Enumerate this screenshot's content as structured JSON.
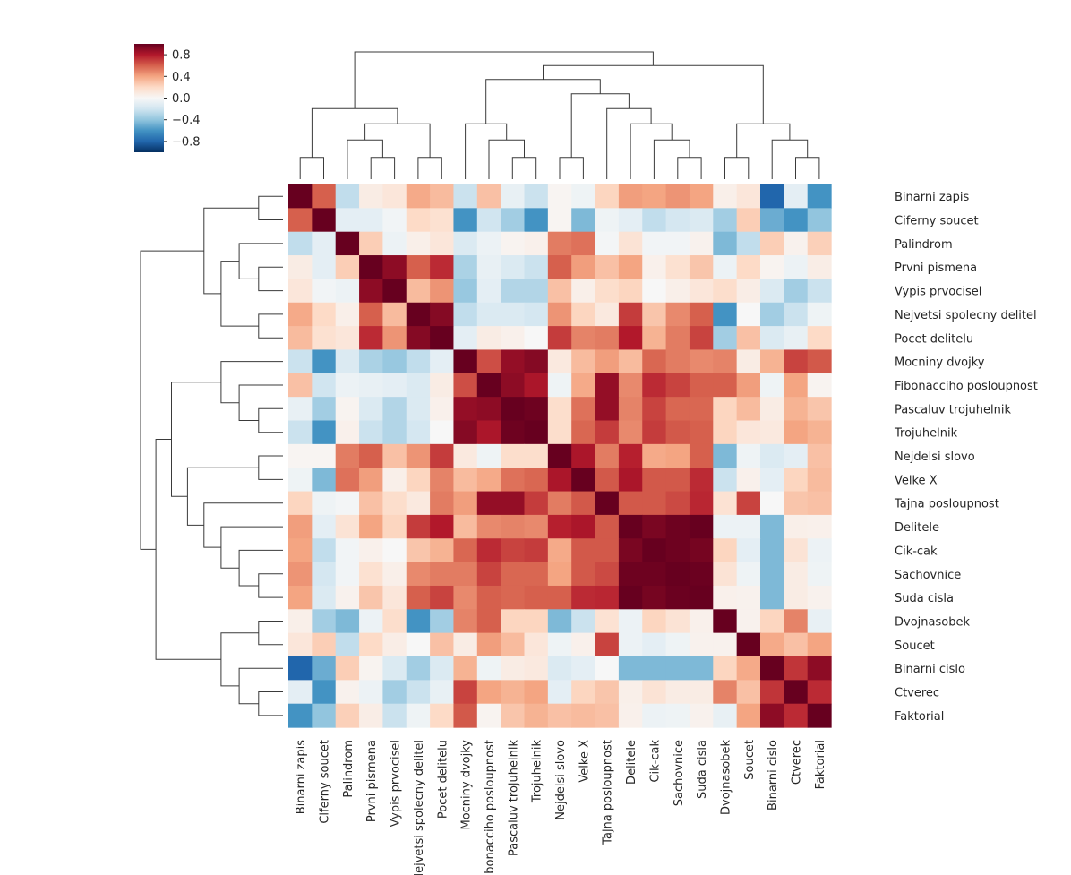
{
  "chart_data": {
    "type": "heatmap",
    "title": "",
    "labels": [
      "Binarni zapis",
      "Ciferny soucet",
      "Palindrom",
      "Prvni pismena",
      "Vypis prvocisel",
      "Nejvetsi spolecny delitel",
      "Pocet delitelu",
      "Mocniny dvojky",
      "Fibonacciho posloupnost",
      "Pascaluv trojuhelnik",
      "Trojuhelnik",
      "Nejdelsi slovo",
      "Velke X",
      "Tajna posloupnost",
      "Delitele",
      "Cik-cak",
      "Sachovnice",
      "Suda cisla",
      "Dvojnasobek",
      "Soucet",
      "Binarni cislo",
      "Ctverec",
      "Faktorial"
    ],
    "values": [
      [
        1.0,
        0.6,
        -0.25,
        0.08,
        0.12,
        0.38,
        0.32,
        -0.22,
        0.3,
        -0.08,
        -0.22,
        0.02,
        -0.05,
        0.22,
        0.42,
        0.4,
        0.45,
        0.4,
        0.06,
        0.12,
        -0.8,
        -0.1,
        -0.6
      ],
      [
        0.6,
        1.0,
        -0.1,
        -0.1,
        -0.03,
        0.2,
        0.16,
        -0.6,
        -0.2,
        -0.35,
        -0.6,
        0.02,
        -0.45,
        -0.05,
        -0.1,
        -0.25,
        -0.18,
        -0.15,
        -0.35,
        0.25,
        -0.5,
        -0.6,
        -0.4
      ],
      [
        -0.25,
        -0.1,
        1.0,
        0.25,
        -0.06,
        0.06,
        0.12,
        -0.15,
        -0.06,
        0.03,
        0.05,
        0.52,
        0.55,
        -0.02,
        0.14,
        -0.03,
        -0.03,
        0.04,
        -0.45,
        -0.25,
        0.25,
        0.04,
        0.24
      ],
      [
        0.08,
        -0.1,
        0.25,
        1.0,
        0.9,
        0.6,
        0.75,
        -0.32,
        -0.08,
        -0.15,
        -0.22,
        0.6,
        0.42,
        0.3,
        0.4,
        0.05,
        0.16,
        0.28,
        -0.06,
        0.2,
        0.03,
        -0.06,
        0.07
      ],
      [
        0.12,
        -0.03,
        -0.06,
        0.9,
        1.0,
        0.32,
        0.45,
        -0.38,
        -0.1,
        -0.3,
        -0.3,
        0.3,
        0.06,
        0.18,
        0.22,
        0.0,
        0.06,
        0.12,
        0.18,
        0.07,
        -0.15,
        -0.35,
        -0.22
      ],
      [
        0.38,
        0.2,
        0.06,
        0.6,
        0.32,
        1.0,
        0.92,
        -0.25,
        -0.15,
        -0.15,
        -0.18,
        0.45,
        0.22,
        0.1,
        0.7,
        0.28,
        0.48,
        0.6,
        -0.6,
        0.0,
        -0.35,
        -0.22,
        -0.05
      ],
      [
        0.32,
        0.16,
        0.12,
        0.75,
        0.45,
        0.92,
        1.0,
        -0.1,
        0.08,
        0.05,
        0.0,
        0.7,
        0.5,
        0.52,
        0.8,
        0.35,
        0.52,
        0.68,
        -0.35,
        0.3,
        -0.15,
        -0.08,
        0.2
      ],
      [
        -0.22,
        -0.6,
        -0.15,
        -0.32,
        -0.38,
        -0.25,
        -0.1,
        1.0,
        0.65,
        0.88,
        0.92,
        0.1,
        0.32,
        0.42,
        0.32,
        0.58,
        0.52,
        0.48,
        0.5,
        0.08,
        0.35,
        0.68,
        0.62
      ],
      [
        0.3,
        -0.2,
        -0.06,
        -0.08,
        -0.1,
        -0.15,
        0.08,
        0.65,
        1.0,
        0.9,
        0.82,
        -0.05,
        0.38,
        0.88,
        0.48,
        0.75,
        0.68,
        0.6,
        0.6,
        0.42,
        -0.05,
        0.4,
        0.03
      ],
      [
        -0.08,
        -0.35,
        0.03,
        -0.15,
        -0.3,
        -0.15,
        0.05,
        0.88,
        0.9,
        1.0,
        0.98,
        0.18,
        0.55,
        0.88,
        0.5,
        0.68,
        0.58,
        0.58,
        0.22,
        0.32,
        0.08,
        0.35,
        0.28
      ],
      [
        -0.22,
        -0.6,
        0.05,
        -0.22,
        -0.3,
        -0.18,
        0.0,
        0.92,
        0.82,
        0.98,
        1.0,
        0.18,
        0.58,
        0.7,
        0.48,
        0.7,
        0.62,
        0.6,
        0.22,
        0.12,
        0.1,
        0.4,
        0.35
      ],
      [
        0.02,
        0.02,
        0.52,
        0.6,
        0.3,
        0.45,
        0.7,
        0.1,
        -0.05,
        0.18,
        0.18,
        1.0,
        0.82,
        0.52,
        0.78,
        0.38,
        0.4,
        0.6,
        -0.45,
        -0.05,
        -0.15,
        -0.1,
        0.3
      ],
      [
        -0.05,
        -0.45,
        0.55,
        0.42,
        0.06,
        0.22,
        0.5,
        0.32,
        0.38,
        0.55,
        0.58,
        0.82,
        1.0,
        0.62,
        0.82,
        0.62,
        0.62,
        0.75,
        -0.22,
        0.05,
        -0.1,
        0.22,
        0.32
      ],
      [
        0.22,
        -0.05,
        -0.02,
        0.3,
        0.18,
        0.1,
        0.52,
        0.42,
        0.88,
        0.88,
        0.7,
        0.52,
        0.62,
        1.0,
        0.62,
        0.62,
        0.66,
        0.76,
        0.15,
        0.68,
        0.0,
        0.28,
        0.3
      ],
      [
        0.42,
        -0.1,
        0.14,
        0.4,
        0.22,
        0.7,
        0.8,
        0.32,
        0.48,
        0.5,
        0.48,
        0.78,
        0.82,
        0.62,
        1.0,
        0.95,
        0.98,
        1.0,
        -0.06,
        -0.06,
        -0.45,
        0.06,
        0.05
      ],
      [
        0.4,
        -0.25,
        -0.03,
        0.05,
        0.0,
        0.28,
        0.35,
        0.58,
        0.75,
        0.68,
        0.7,
        0.38,
        0.62,
        0.62,
        0.95,
        1.0,
        0.98,
        0.96,
        0.22,
        -0.1,
        -0.45,
        0.14,
        -0.06
      ],
      [
        0.45,
        -0.18,
        -0.03,
        0.16,
        0.06,
        0.48,
        0.52,
        0.52,
        0.68,
        0.58,
        0.58,
        0.4,
        0.62,
        0.66,
        0.98,
        0.98,
        1.0,
        0.99,
        0.14,
        -0.05,
        -0.45,
        0.08,
        -0.05
      ],
      [
        0.4,
        -0.15,
        0.04,
        0.28,
        0.12,
        0.6,
        0.68,
        0.48,
        0.6,
        0.58,
        0.6,
        0.6,
        0.75,
        0.76,
        1.0,
        0.96,
        0.99,
        1.0,
        0.05,
        0.04,
        -0.45,
        0.08,
        0.04
      ],
      [
        0.06,
        -0.35,
        -0.45,
        -0.06,
        0.18,
        -0.6,
        -0.35,
        0.5,
        0.6,
        0.22,
        0.22,
        -0.45,
        -0.22,
        0.15,
        -0.06,
        0.22,
        0.14,
        0.05,
        1.0,
        0.04,
        0.22,
        0.5,
        -0.08
      ],
      [
        0.12,
        0.25,
        -0.25,
        0.2,
        0.07,
        0.0,
        0.3,
        0.08,
        0.42,
        0.32,
        0.12,
        -0.05,
        0.05,
        0.68,
        -0.06,
        -0.1,
        -0.05,
        0.04,
        0.04,
        1.0,
        0.38,
        0.3,
        0.4
      ],
      [
        -0.8,
        -0.5,
        0.25,
        0.03,
        -0.15,
        -0.35,
        -0.15,
        0.35,
        -0.05,
        0.08,
        0.1,
        -0.15,
        -0.1,
        0.0,
        -0.45,
        -0.45,
        -0.45,
        -0.45,
        0.22,
        0.38,
        1.0,
        0.72,
        0.9
      ],
      [
        -0.1,
        -0.6,
        0.04,
        -0.06,
        -0.35,
        -0.22,
        -0.08,
        0.68,
        0.4,
        0.35,
        0.4,
        -0.1,
        0.22,
        0.28,
        0.06,
        0.14,
        0.08,
        0.08,
        0.5,
        0.3,
        0.72,
        1.0,
        0.75
      ],
      [
        -0.6,
        -0.4,
        0.24,
        0.07,
        -0.22,
        -0.05,
        0.2,
        0.62,
        0.03,
        0.28,
        0.35,
        0.3,
        0.32,
        0.3,
        0.05,
        -0.06,
        -0.05,
        0.04,
        -0.08,
        0.4,
        0.9,
        0.75,
        1.0
      ]
    ],
    "colormap": [
      "#053061",
      "#2166ac",
      "#4393c3",
      "#92c5de",
      "#d1e5f0",
      "#f7f7f7",
      "#fddbc7",
      "#f4a582",
      "#d6604d",
      "#b2182b",
      "#67001f"
    ],
    "vmin": -1,
    "vmax": 1,
    "colorbar_ticks": [
      "0.8",
      "0.4",
      "0.0",
      "−0.4",
      "−0.8"
    ],
    "colorbar_values": [
      0.8,
      0.4,
      0.0,
      -0.4,
      -0.8
    ],
    "row_dendrogram_order": "same as columns",
    "legend_placement": "top-left"
  }
}
